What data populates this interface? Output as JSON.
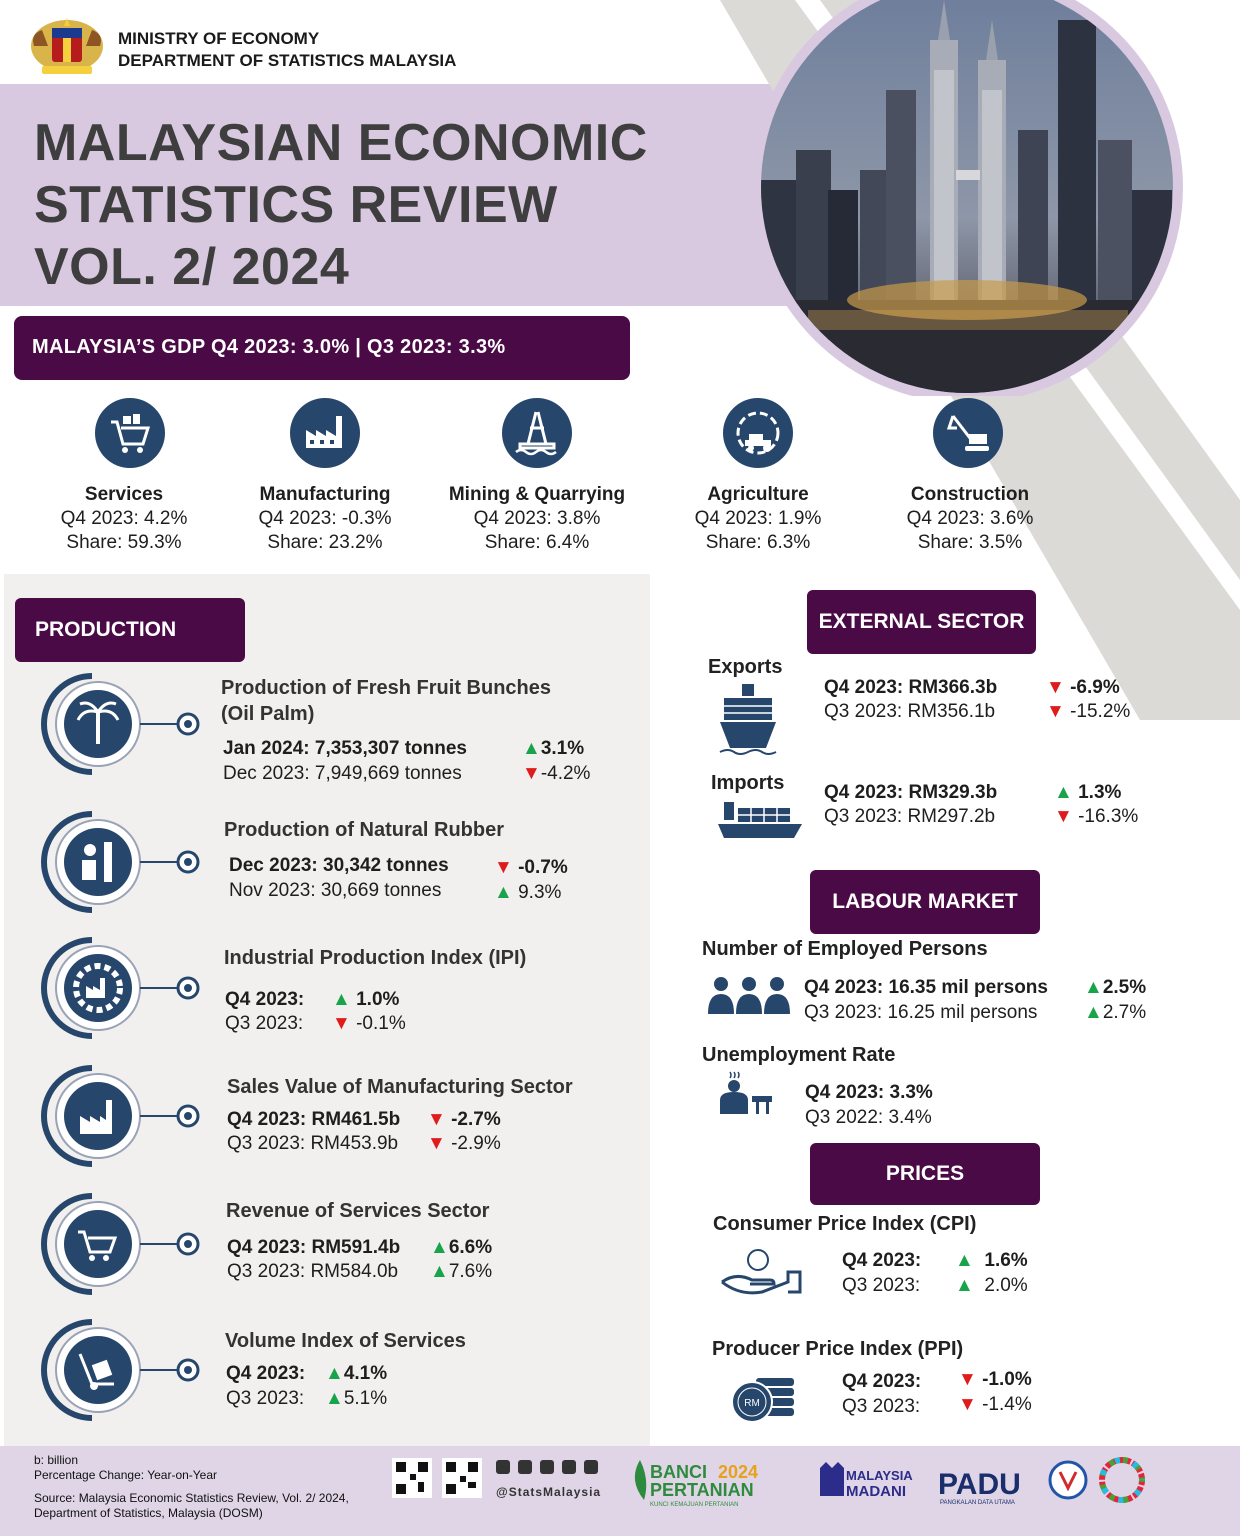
{
  "header": {
    "ministry": "MINISTRY OF ECONOMY",
    "department": "DEPARTMENT OF STATISTICS MALAYSIA",
    "title_line1": "MALAYSIAN ECONOMIC",
    "title_line2": "STATISTICS REVIEW",
    "title_line3": "VOL. 2/ 2024"
  },
  "gdp_banner": "MALAYSIA’S GDP Q4 2023: 3.0% | Q3 2023: 3.3%",
  "sectors": [
    {
      "name": "Services",
      "growth": "Q4 2023: 4.2%",
      "share": "Share: 59.3%",
      "icon": "shopping-cart-icon"
    },
    {
      "name": "Manufacturing",
      "growth": "Q4 2023: -0.3%",
      "share": "Share: 23.2%",
      "icon": "factory-icon"
    },
    {
      "name": "Mining & Quarrying",
      "growth": "Q4 2023: 3.8%",
      "share": "Share: 6.4%",
      "icon": "oil-rig-icon"
    },
    {
      "name": "Agriculture",
      "growth": "Q4 2023: 1.9%",
      "share": "Share: 6.3%",
      "icon": "agriculture-icon"
    },
    {
      "name": "Construction",
      "growth": "Q4 2023: 3.6%",
      "share": "Share: 3.5%",
      "icon": "excavator-icon"
    }
  ],
  "production": {
    "heading": "PRODUCTION",
    "items": [
      {
        "title": "Production of Fresh Fruit Bunches (Oil Palm)",
        "title_l1": "Production of Fresh Fruit Bunches",
        "title_l2": "(Oil Palm)",
        "current": "Jan 2024: 7,353,307 tonnes",
        "current_change": "3.1%",
        "current_dir": "up",
        "previous": "Dec 2023: 7,949,669 tonnes",
        "previous_change": "-4.2%",
        "previous_dir": "down",
        "icon": "palm-tree-icon"
      },
      {
        "title": "Production of Natural Rubber",
        "current": "Dec 2023: 30,342 tonnes",
        "current_change": "-0.7%",
        "current_dir": "down",
        "previous": "Nov 2023: 30,669 tonnes",
        "previous_change": "9.3%",
        "previous_dir": "up",
        "icon": "rubber-tapper-icon"
      },
      {
        "title": "Industrial Production Index (IPI)",
        "current": "Q4 2023:",
        "current_change": "1.0%",
        "current_dir": "up",
        "previous": "Q3 2023:",
        "previous_change": "-0.1%",
        "previous_dir": "down",
        "icon": "industry-gear-icon"
      },
      {
        "title": "Sales Value of Manufacturing Sector",
        "current": "Q4 2023: RM461.5b",
        "current_change": "-2.7%",
        "current_dir": "down",
        "previous": "Q3 2023: RM453.9b",
        "previous_change": "-2.9%",
        "previous_dir": "down",
        "icon": "factory-icon"
      },
      {
        "title": "Revenue of Services Sector",
        "current": "Q4 2023: RM591.4b",
        "current_change": "6.6%",
        "current_dir": "up",
        "previous": "Q3 2023: RM584.0b",
        "previous_change": "7.6%",
        "previous_dir": "up",
        "icon": "shopping-cart-icon"
      },
      {
        "title": "Volume Index of Services",
        "current": "Q4 2023:",
        "current_change": "4.1%",
        "current_dir": "up",
        "previous": "Q3 2023:",
        "previous_change": "5.1%",
        "previous_dir": "up",
        "icon": "hand-truck-icon"
      }
    ]
  },
  "external": {
    "heading": "EXTERNAL SECTOR",
    "exports": {
      "label": "Exports",
      "current": "Q4 2023: RM366.3b",
      "current_change": "-6.9%",
      "current_dir": "down",
      "previous": "Q3 2023: RM356.1b",
      "previous_change": "-15.2%",
      "previous_dir": "down",
      "icon": "cargo-ship-front-icon"
    },
    "imports": {
      "label": "Imports",
      "current": "Q4 2023: RM329.3b",
      "current_change": "1.3%",
      "current_dir": "up",
      "previous": "Q3 2023: RM297.2b",
      "previous_change": "-16.3%",
      "previous_dir": "down",
      "icon": "cargo-ship-side-icon"
    }
  },
  "labour": {
    "heading": "LABOUR MARKET",
    "employed": {
      "label": "Number of Employed Persons",
      "current": "Q4 2023: 16.35 mil persons",
      "current_change": "2.5%",
      "current_dir": "up",
      "previous": "Q3 2023: 16.25 mil persons",
      "previous_change": "2.7%",
      "previous_dir": "up",
      "icon": "people-icon"
    },
    "unemployment": {
      "label": "Unemployment Rate",
      "current": "Q4 2023: 3.3%",
      "previous": "Q3 2022: 3.4%",
      "icon": "unemployed-person-icon"
    }
  },
  "prices": {
    "heading": "PRICES",
    "cpi": {
      "label": "Consumer Price Index (CPI)",
      "current": "Q4 2023:",
      "current_change": "1.6%",
      "current_dir": "up",
      "previous": "Q3 2023:",
      "previous_change": "2.0%",
      "previous_dir": "up",
      "icon": "hand-coin-icon"
    },
    "ppi": {
      "label": "Producer Price Index (PPI)",
      "current": "Q4 2023:",
      "current_change": "-1.0%",
      "current_dir": "down",
      "previous": "Q3 2023:",
      "previous_change": "-1.4%",
      "previous_dir": "down",
      "icon": "coin-stack-icon",
      "coin_text": "RM"
    }
  },
  "footer": {
    "note1": "b: billion",
    "note2": "Percentage Change: Year-on-Year",
    "source1": "Source: Malaysia Economic Statistics Review, Vol. 2/ 2024,",
    "source2": "Department of Statistics, Malaysia (DOSM)",
    "social_handle": "@StatsMalaysia",
    "banci_l1": "BANCI",
    "banci_year": "2024",
    "banci_l2": "PERTANIAN",
    "banci_tag": "KUNCI KEMAJUAN PERTANIAN",
    "madani_l1": "MALAYSIA",
    "madani_l2": "MADANI",
    "padu": "PADU",
    "padu_tag": "PANGKALAN DATA UTAMA"
  },
  "colors": {
    "purple_dark": "#4a0a45",
    "lavender": "#d9c9e0",
    "icon_blue": "#27466b",
    "up_green": "#19a34a",
    "down_red": "#e01b1b"
  }
}
